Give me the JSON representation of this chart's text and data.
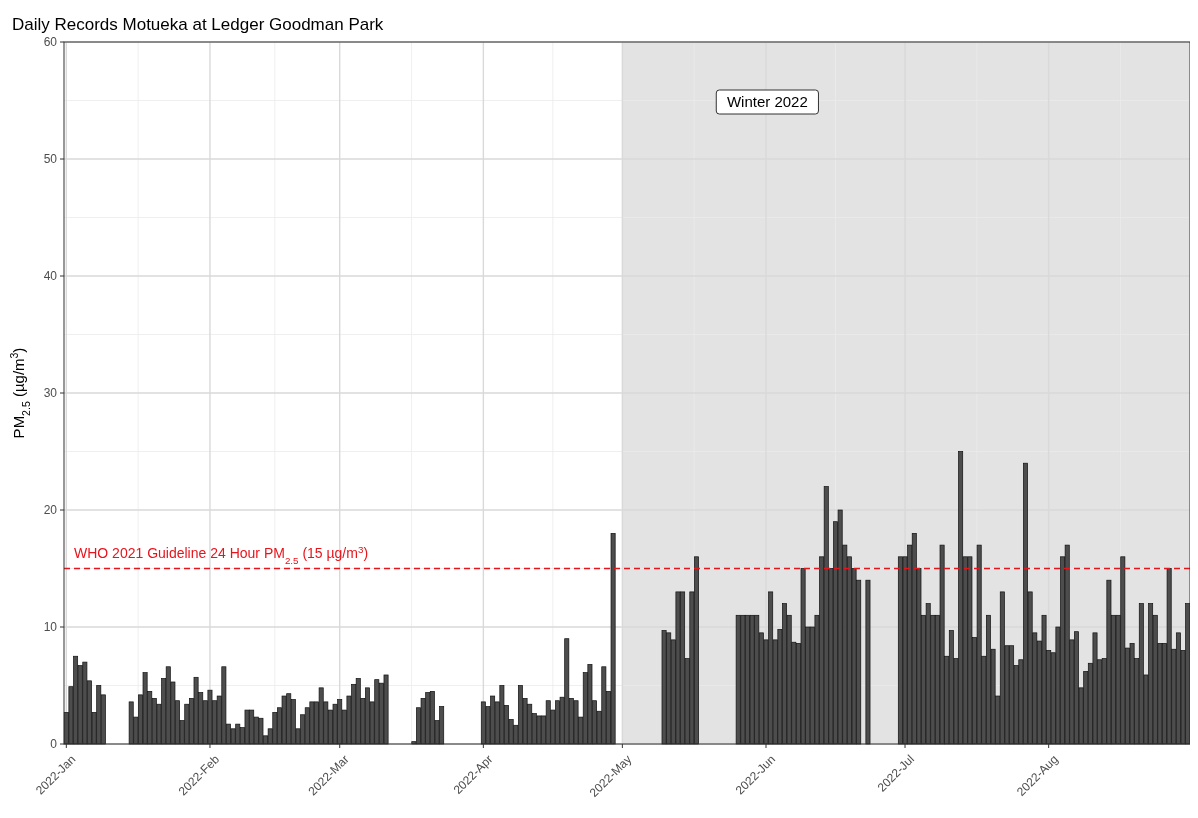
{
  "chart_data": {
    "type": "bar",
    "title": "Daily Records Motueka at Ledger Goodman Park",
    "ylabel": "PM$_{2.5}$ (µg/m$^{3}$)",
    "color": "#4d4d4d",
    "x": [
      "2022-01-01",
      "2022-01-02",
      "2022-01-03",
      "2022-01-04",
      "2022-01-05",
      "2022-01-06",
      "2022-01-07",
      "2022-01-08",
      "2022-01-09",
      "2022-01-15",
      "2022-01-16",
      "2022-01-17",
      "2022-01-18",
      "2022-01-19",
      "2022-01-20",
      "2022-01-21",
      "2022-01-22",
      "2022-01-23",
      "2022-01-24",
      "2022-01-25",
      "2022-01-26",
      "2022-01-27",
      "2022-01-28",
      "2022-01-29",
      "2022-01-30",
      "2022-01-31",
      "2022-02-01",
      "2022-02-02",
      "2022-02-03",
      "2022-02-04",
      "2022-02-05",
      "2022-02-06",
      "2022-02-07",
      "2022-02-08",
      "2022-02-09",
      "2022-02-10",
      "2022-02-11",
      "2022-02-12",
      "2022-02-13",
      "2022-02-14",
      "2022-02-15",
      "2022-02-16",
      "2022-02-17",
      "2022-02-18",
      "2022-02-19",
      "2022-02-20",
      "2022-02-21",
      "2022-02-22",
      "2022-02-23",
      "2022-02-24",
      "2022-02-25",
      "2022-02-26",
      "2022-02-27",
      "2022-02-28",
      "2022-03-01",
      "2022-03-02",
      "2022-03-03",
      "2022-03-04",
      "2022-03-05",
      "2022-03-06",
      "2022-03-07",
      "2022-03-08",
      "2022-03-09",
      "2022-03-10",
      "2022-03-11",
      "2022-03-17",
      "2022-03-18",
      "2022-03-19",
      "2022-03-20",
      "2022-03-21",
      "2022-03-22",
      "2022-03-23",
      "2022-04-01",
      "2022-04-02",
      "2022-04-03",
      "2022-04-04",
      "2022-04-05",
      "2022-04-06",
      "2022-04-07",
      "2022-04-08",
      "2022-04-09",
      "2022-04-10",
      "2022-04-11",
      "2022-04-12",
      "2022-04-13",
      "2022-04-14",
      "2022-04-15",
      "2022-04-16",
      "2022-04-17",
      "2022-04-18",
      "2022-04-19",
      "2022-04-20",
      "2022-04-21",
      "2022-04-22",
      "2022-04-23",
      "2022-04-24",
      "2022-04-25",
      "2022-04-26",
      "2022-04-27",
      "2022-04-28",
      "2022-04-29",
      "2022-05-10",
      "2022-05-11",
      "2022-05-12",
      "2022-05-13",
      "2022-05-14",
      "2022-05-15",
      "2022-05-16",
      "2022-05-17",
      "2022-05-26",
      "2022-05-27",
      "2022-05-28",
      "2022-05-29",
      "2022-05-30",
      "2022-05-31",
      "2022-06-01",
      "2022-06-02",
      "2022-06-03",
      "2022-06-04",
      "2022-06-05",
      "2022-06-06",
      "2022-06-07",
      "2022-06-08",
      "2022-06-09",
      "2022-06-10",
      "2022-06-11",
      "2022-06-12",
      "2022-06-13",
      "2022-06-14",
      "2022-06-15",
      "2022-06-16",
      "2022-06-17",
      "2022-06-18",
      "2022-06-19",
      "2022-06-20",
      "2022-06-21",
      "2022-06-23",
      "2022-06-30",
      "2022-07-01",
      "2022-07-02",
      "2022-07-03",
      "2022-07-04",
      "2022-07-05",
      "2022-07-06",
      "2022-07-07",
      "2022-07-08",
      "2022-07-09",
      "2022-07-10",
      "2022-07-11",
      "2022-07-12",
      "2022-07-13",
      "2022-07-14",
      "2022-07-15",
      "2022-07-16",
      "2022-07-17",
      "2022-07-18",
      "2022-07-19",
      "2022-07-20",
      "2022-07-21",
      "2022-07-22",
      "2022-07-23",
      "2022-07-24",
      "2022-07-25",
      "2022-07-26",
      "2022-07-27",
      "2022-07-28",
      "2022-07-29",
      "2022-07-30",
      "2022-07-31",
      "2022-08-01",
      "2022-08-02",
      "2022-08-03",
      "2022-08-04",
      "2022-08-05",
      "2022-08-06",
      "2022-08-07",
      "2022-08-08",
      "2022-08-09",
      "2022-08-10",
      "2022-08-11",
      "2022-08-12",
      "2022-08-13",
      "2022-08-14",
      "2022-08-15",
      "2022-08-16",
      "2022-08-17",
      "2022-08-18",
      "2022-08-19",
      "2022-08-20",
      "2022-08-21",
      "2022-08-22",
      "2022-08-23",
      "2022-08-24",
      "2022-08-25",
      "2022-08-26",
      "2022-08-27",
      "2022-08-28",
      "2022-08-29",
      "2022-08-30",
      "2022-08-31"
    ],
    "values": [
      2.7,
      4.9,
      7.5,
      6.7,
      7.0,
      5.4,
      2.7,
      5.0,
      4.2,
      3.6,
      2.3,
      4.2,
      6.1,
      4.5,
      3.9,
      3.4,
      5.6,
      6.6,
      5.3,
      3.7,
      2.0,
      3.4,
      3.9,
      5.7,
      4.4,
      3.7,
      4.6,
      3.7,
      4.1,
      6.6,
      1.7,
      1.3,
      1.7,
      1.4,
      2.9,
      2.9,
      2.3,
      2.2,
      0.7,
      1.3,
      2.7,
      3.1,
      4.1,
      4.3,
      3.8,
      1.3,
      2.5,
      3.1,
      3.6,
      3.6,
      4.8,
      3.6,
      2.9,
      3.4,
      3.8,
      2.9,
      4.1,
      5.1,
      5.6,
      3.9,
      4.8,
      3.6,
      5.5,
      5.2,
      5.9,
      0.2,
      3.1,
      3.9,
      4.4,
      4.5,
      2.0,
      3.2,
      3.6,
      3.2,
      4.1,
      3.6,
      5.0,
      3.3,
      2.1,
      1.6,
      5.0,
      3.9,
      3.4,
      2.6,
      2.4,
      2.4,
      3.7,
      2.9,
      3.7,
      4.0,
      9.0,
      3.9,
      3.7,
      2.3,
      6.1,
      6.8,
      3.7,
      2.8,
      6.6,
      4.5,
      18,
      9.7,
      9.5,
      8.9,
      13,
      13,
      7.3,
      13,
      16,
      11,
      11,
      11,
      11,
      11,
      9.5,
      8.9,
      13,
      8.9,
      9.8,
      12,
      11,
      8.7,
      8.6,
      15,
      10,
      10,
      11,
      16,
      22,
      15,
      19,
      20,
      17,
      16,
      15,
      14,
      14,
      16,
      16,
      17,
      18,
      15,
      11,
      12,
      11,
      11,
      17,
      7.5,
      9.7,
      7.3,
      25,
      16,
      16,
      9.1,
      17,
      7.5,
      11,
      8.1,
      4.1,
      13,
      8.4,
      8.4,
      6.7,
      7.2,
      24,
      13,
      9.5,
      8.8,
      11,
      8.0,
      7.8,
      10,
      16,
      17,
      8.9,
      9.6,
      4.8,
      6.2,
      6.9,
      9.5,
      7.2,
      7.3,
      14,
      11,
      11,
      16,
      8.2,
      8.6,
      7.3,
      12,
      5.9,
      12,
      11,
      8.6,
      8.6,
      15,
      8.1,
      9.5,
      8.0,
      12
    ],
    "xlim": [
      "2021-12-31T12:00",
      "2022-08-31T12:00"
    ],
    "xticks": [
      {
        "value": "2022-01-01",
        "label": "2022-Jan"
      },
      {
        "value": "2022-02-01",
        "label": "2022-Feb"
      },
      {
        "value": "2022-03-01",
        "label": "2022-Mar"
      },
      {
        "value": "2022-04-01",
        "label": "2022-Apr"
      },
      {
        "value": "2022-05-01",
        "label": "2022-May"
      },
      {
        "value": "2022-06-01",
        "label": "2022-Jun"
      },
      {
        "value": "2022-07-01",
        "label": "2022-Jul"
      },
      {
        "value": "2022-08-01",
        "label": "2022-Aug"
      }
    ],
    "ylim": [
      0,
      60
    ],
    "yticks": [
      0,
      10,
      20,
      30,
      40,
      50,
      60
    ],
    "grid": true,
    "ref_lines": [
      {
        "axis": "y",
        "value": 15,
        "label": "WHO 2021 Guideline 24 Hour PM$_{2.5}$ (15 µg/m$^{3}$)",
        "color": "#e8141b",
        "line_style": "dashed"
      }
    ],
    "bands": [
      {
        "axis": "x",
        "from": "2022-05-01",
        "to": "2022-08-31T12:00",
        "label": "Winter 2022",
        "color": "#e3e3e3"
      }
    ]
  }
}
